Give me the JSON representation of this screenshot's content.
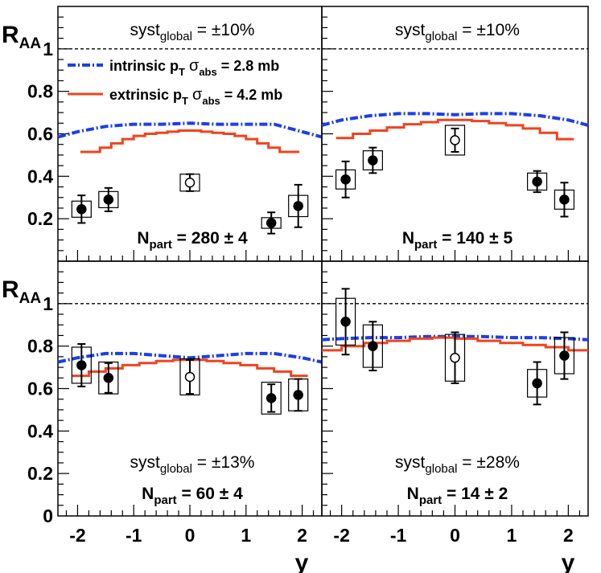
{
  "chart_data": {
    "type": "scatter",
    "layout": "2x2 panels, shared axes",
    "ylabel": {
      "main": "R",
      "sub": "AA"
    },
    "xlabel": "y",
    "xlim": [
      -2.35,
      2.35
    ],
    "ylim": [
      0,
      1.2
    ],
    "xticks": [
      "-2",
      "-1",
      "0",
      "1",
      "2"
    ],
    "yticks": [
      "0",
      "0.2",
      "0.4",
      "0.6",
      "0.8",
      "1"
    ],
    "reference_line": 1.0,
    "legend": {
      "placement": "top of upper-left panel",
      "entries": [
        {
          "name": "intrinsic",
          "rest": " p",
          "sub": "T",
          "sigma": "σ",
          "sigma_sub": "abs",
          "value": " = 2.8 mb",
          "style": "dash-dot",
          "color": "#1b3fe8"
        },
        {
          "name": "extrinsic",
          "rest": " p",
          "sub": "T",
          "sigma": "σ",
          "sigma_sub": "abs",
          "value": " = 4.2 mb",
          "style": "solid",
          "color": "#f0431e"
        }
      ]
    },
    "panels": [
      {
        "syst": {
          "label": "syst",
          "sub": "global",
          "value": " = ±10%"
        },
        "npart": {
          "label": "N",
          "sub": "part",
          "value": " = 280 ± 4"
        },
        "points": [
          {
            "x": -1.93,
            "y": 0.245,
            "err": 0.065,
            "box": 0.038,
            "open": false
          },
          {
            "x": -1.45,
            "y": 0.29,
            "err": 0.055,
            "box": 0.038,
            "open": false
          },
          {
            "x": 0.0,
            "y": 0.37,
            "err": 0.04,
            "box": 0.04,
            "open": true
          },
          {
            "x": 1.45,
            "y": 0.18,
            "err": 0.05,
            "box": 0.025,
            "open": false
          },
          {
            "x": 1.93,
            "y": 0.26,
            "err": 0.1,
            "box": 0.05,
            "open": false
          }
        ],
        "intrinsic": {
          "x": [
            -2.35,
            -2.0,
            -1.5,
            -1.0,
            -0.5,
            0.0,
            0.5,
            1.0,
            1.5,
            2.0,
            2.35
          ],
          "y": [
            0.585,
            0.61,
            0.635,
            0.645,
            0.645,
            0.65,
            0.645,
            0.645,
            0.645,
            0.61,
            0.585
          ]
        },
        "extrinsic_edges": [
          -1.95,
          -1.6,
          -1.4,
          -1.2,
          -1.0,
          -0.8,
          -0.6,
          -0.4,
          -0.2,
          0.0,
          0.2,
          0.4,
          0.6,
          0.8,
          1.0,
          1.2,
          1.4,
          1.6,
          1.95
        ],
        "extrinsic_values": [
          0.515,
          0.535,
          0.555,
          0.575,
          0.59,
          0.6,
          0.605,
          0.61,
          0.615,
          0.615,
          0.61,
          0.605,
          0.6,
          0.59,
          0.575,
          0.555,
          0.535,
          0.515
        ]
      },
      {
        "syst": {
          "label": "syst",
          "sub": "global",
          "value": " = ±10%"
        },
        "npart": {
          "label": "N",
          "sub": "part",
          "value": " = 140 ± 5"
        },
        "points": [
          {
            "x": -1.93,
            "y": 0.385,
            "err": 0.085,
            "box": 0.045,
            "open": false
          },
          {
            "x": -1.45,
            "y": 0.475,
            "err": 0.06,
            "box": 0.045,
            "open": false
          },
          {
            "x": 0.0,
            "y": 0.57,
            "err": 0.055,
            "box": 0.07,
            "open": true
          },
          {
            "x": 1.45,
            "y": 0.375,
            "err": 0.05,
            "box": 0.04,
            "open": false
          },
          {
            "x": 1.93,
            "y": 0.29,
            "err": 0.08,
            "box": 0.045,
            "open": false
          }
        ],
        "intrinsic": {
          "x": [
            -2.35,
            -2.0,
            -1.5,
            -1.0,
            -0.5,
            0.0,
            0.5,
            1.0,
            1.5,
            2.0,
            2.35
          ],
          "y": [
            0.64,
            0.665,
            0.685,
            0.695,
            0.695,
            0.69,
            0.695,
            0.695,
            0.685,
            0.665,
            0.64
          ]
        },
        "extrinsic_edges": [
          -2.1,
          -1.8,
          -1.5,
          -1.2,
          -0.9,
          -0.6,
          -0.3,
          0.0,
          0.3,
          0.6,
          0.9,
          1.2,
          1.5,
          1.8,
          2.1
        ],
        "extrinsic_values": [
          0.58,
          0.6,
          0.615,
          0.63,
          0.645,
          0.655,
          0.665,
          0.665,
          0.66,
          0.65,
          0.64,
          0.625,
          0.605,
          0.575
        ]
      },
      {
        "syst": {
          "label": "syst",
          "sub": "global",
          "value": " = ±13%"
        },
        "npart": {
          "label": "N",
          "sub": "part",
          "value": " = 60 ± 4"
        },
        "points": [
          {
            "x": -1.93,
            "y": 0.71,
            "err": 0.1,
            "box": 0.085,
            "open": false
          },
          {
            "x": -1.45,
            "y": 0.65,
            "err": 0.07,
            "box": 0.075,
            "open": false
          },
          {
            "x": 0.0,
            "y": 0.655,
            "err": 0.08,
            "box": 0.085,
            "open": true
          },
          {
            "x": 1.45,
            "y": 0.555,
            "err": 0.065,
            "box": 0.075,
            "open": false
          },
          {
            "x": 1.93,
            "y": 0.57,
            "err": 0.075,
            "box": 0.075,
            "open": false
          }
        ],
        "intrinsic": {
          "x": [
            -2.35,
            -2.0,
            -1.5,
            -1.0,
            -0.5,
            0.0,
            0.5,
            1.0,
            1.5,
            2.0,
            2.35
          ],
          "y": [
            0.725,
            0.745,
            0.765,
            0.765,
            0.755,
            0.745,
            0.755,
            0.765,
            0.765,
            0.745,
            0.725
          ]
        },
        "extrinsic_edges": [
          -2.1,
          -1.8,
          -1.5,
          -1.2,
          -0.9,
          -0.6,
          -0.3,
          0.0,
          0.3,
          0.6,
          0.9,
          1.2,
          1.5,
          1.8,
          2.1
        ],
        "extrinsic_values": [
          0.66,
          0.68,
          0.695,
          0.71,
          0.72,
          0.73,
          0.735,
          0.735,
          0.73,
          0.72,
          0.71,
          0.695,
          0.68,
          0.66
        ]
      },
      {
        "syst": {
          "label": "syst",
          "sub": "global",
          "value": " = ±28%"
        },
        "npart": {
          "label": "N",
          "sub": "part",
          "value": " = 14 ± 2"
        },
        "points": [
          {
            "x": -1.93,
            "y": 0.915,
            "err": 0.155,
            "box": 0.11,
            "open": false
          },
          {
            "x": -1.45,
            "y": 0.8,
            "err": 0.115,
            "box": 0.1,
            "open": false
          },
          {
            "x": 0.0,
            "y": 0.745,
            "err": 0.12,
            "box": 0.11,
            "open": true
          },
          {
            "x": 1.45,
            "y": 0.625,
            "err": 0.1,
            "box": 0.065,
            "open": false
          },
          {
            "x": 1.93,
            "y": 0.755,
            "err": 0.11,
            "box": 0.085,
            "open": false
          }
        ],
        "intrinsic": {
          "x": [
            -2.35,
            -2.0,
            -1.5,
            -1.0,
            -0.5,
            0.0,
            0.5,
            1.0,
            1.5,
            2.0,
            2.35
          ],
          "y": [
            0.83,
            0.835,
            0.84,
            0.84,
            0.845,
            0.845,
            0.845,
            0.84,
            0.84,
            0.835,
            0.83
          ]
        },
        "extrinsic_edges": [
          -2.35,
          -2.0,
          -1.6,
          -1.2,
          -0.8,
          -0.4,
          0.0,
          0.4,
          0.8,
          1.2,
          1.6,
          2.0,
          2.35
        ],
        "extrinsic_values": [
          0.78,
          0.8,
          0.815,
          0.825,
          0.835,
          0.84,
          0.835,
          0.825,
          0.815,
          0.805,
          0.795,
          0.78
        ]
      }
    ]
  }
}
